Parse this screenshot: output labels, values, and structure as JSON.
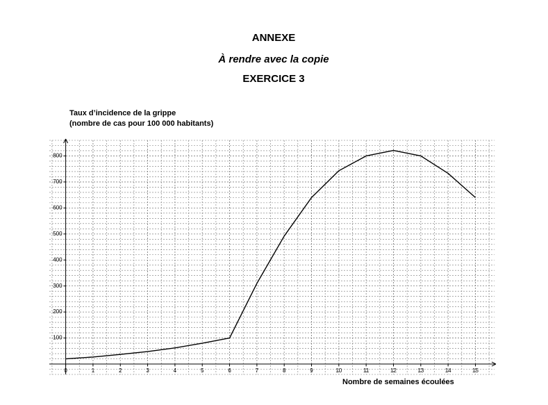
{
  "header": {
    "title": "ANNEXE",
    "subtitle": "À rendre avec la copie",
    "exercise": "EXERCICE 3"
  },
  "chart_data": {
    "type": "line",
    "y_label": [
      "Taux d’incidence de la grippe",
      "(nombre de cas pour 100 000 habitants)"
    ],
    "x_label": "Nombre de semaines écoulées",
    "x": [
      0,
      1,
      2,
      3,
      4,
      5,
      6,
      7,
      8,
      9,
      10,
      11,
      12,
      13,
      14,
      15
    ],
    "series": [
      {
        "name": "Taux d’incidence",
        "color": "#000000",
        "values": [
          20,
          27,
          37,
          48,
          62,
          80,
          100,
          310,
          492,
          640,
          743,
          800,
          821,
          800,
          733,
          640
        ]
      }
    ],
    "xlim": [
      -0.6,
      15.7
    ],
    "ylim": [
      -40,
      860
    ],
    "xticks": [
      0,
      1,
      2,
      3,
      4,
      5,
      6,
      7,
      8,
      9,
      10,
      11,
      12,
      13,
      14,
      15
    ],
    "yticks": [
      100,
      200,
      300,
      400,
      500,
      600,
      700,
      800
    ],
    "grid": true
  }
}
